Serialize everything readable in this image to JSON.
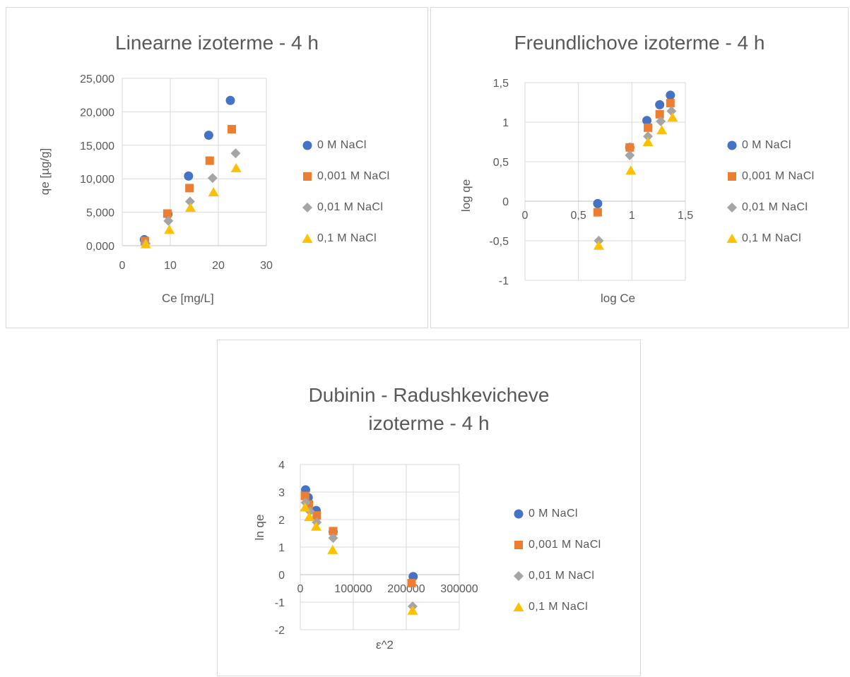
{
  "legend_series": [
    "0 M NaCl",
    "0,001 M NaCl",
    "0,01 M NaCl",
    "0,1 M NaCl"
  ],
  "colors": {
    "s0": "#4472C4",
    "s1": "#ED7D31",
    "s2": "#A5A5A5",
    "s3": "#FFC000",
    "grid": "#d9d9d9",
    "text": "#595959"
  },
  "chart_data": [
    {
      "type": "scatter",
      "title": "Linearne izoterme - 4 h",
      "xlabel": "Ce [mg/L]",
      "ylabel": "qe [µg/g]",
      "xlim": [
        0,
        30
      ],
      "ylim": [
        0,
        25
      ],
      "x_ticks": [
        "0",
        "10",
        "20",
        "30"
      ],
      "y_ticks": [
        "0,000",
        "5,000",
        "10,000",
        "15,000",
        "20,000",
        "25,000"
      ],
      "grid": true,
      "legend_position": "right",
      "series": [
        {
          "name": "0 M NaCl",
          "marker": "circle",
          "points": [
            [
              4.6,
              0.9
            ],
            [
              9.5,
              4.7
            ],
            [
              13.8,
              10.4
            ],
            [
              18.0,
              16.5
            ],
            [
              22.5,
              21.7
            ]
          ]
        },
        {
          "name": "0,001 M NaCl",
          "marker": "square",
          "points": [
            [
              4.7,
              0.7
            ],
            [
              9.4,
              4.8
            ],
            [
              14.0,
              8.6
            ],
            [
              18.2,
              12.7
            ],
            [
              22.8,
              17.4
            ]
          ]
        },
        {
          "name": "0,01 M NaCl",
          "marker": "diamond",
          "points": [
            [
              4.9,
              0.3
            ],
            [
              9.6,
              3.7
            ],
            [
              14.1,
              6.6
            ],
            [
              18.8,
              10.1
            ],
            [
              23.6,
              13.8
            ]
          ]
        },
        {
          "name": "0,1 M NaCl",
          "marker": "triangle",
          "points": [
            [
              4.9,
              0.25
            ],
            [
              9.8,
              2.4
            ],
            [
              14.2,
              5.7
            ],
            [
              19.0,
              8.0
            ],
            [
              23.7,
              11.6
            ]
          ]
        }
      ]
    },
    {
      "type": "scatter",
      "title": "Freundlichove izoterme - 4 h",
      "xlabel": "log Ce",
      "ylabel": "log qe",
      "xlim": [
        0,
        1.5
      ],
      "ylim": [
        -1,
        1.5
      ],
      "x_ticks": [
        "0",
        "0,5",
        "1",
        "1,5"
      ],
      "y_ticks": [
        "-1",
        "-0,5",
        "0",
        "0,5",
        "1",
        "1,5"
      ],
      "grid": true,
      "legend_position": "right",
      "series": [
        {
          "name": "0 M NaCl",
          "marker": "circle",
          "points": [
            [
              0.68,
              -0.03
            ],
            [
              0.98,
              0.68
            ],
            [
              1.14,
              1.02
            ],
            [
              1.26,
              1.22
            ],
            [
              1.36,
              1.34
            ]
          ]
        },
        {
          "name": "0,001 M NaCl",
          "marker": "square",
          "points": [
            [
              0.68,
              -0.14
            ],
            [
              0.98,
              0.68
            ],
            [
              1.15,
              0.93
            ],
            [
              1.26,
              1.1
            ],
            [
              1.36,
              1.24
            ]
          ]
        },
        {
          "name": "0,01 M NaCl",
          "marker": "diamond",
          "points": [
            [
              0.69,
              -0.5
            ],
            [
              0.98,
              0.58
            ],
            [
              1.15,
              0.82
            ],
            [
              1.27,
              1.01
            ],
            [
              1.37,
              1.14
            ]
          ]
        },
        {
          "name": "0,1 M NaCl",
          "marker": "triangle",
          "points": [
            [
              0.69,
              -0.56
            ],
            [
              0.99,
              0.39
            ],
            [
              1.15,
              0.75
            ],
            [
              1.28,
              0.9
            ],
            [
              1.38,
              1.06
            ]
          ]
        }
      ]
    },
    {
      "type": "scatter",
      "title": "Dubinin - Radushkevicheve izoterme - 4 h",
      "xlabel": "ε^2",
      "ylabel": "ln qe",
      "xlim": [
        0,
        300000
      ],
      "ylim": [
        -2,
        4
      ],
      "x_ticks": [
        "0",
        "100000",
        "200000",
        "300000"
      ],
      "y_ticks": [
        "-2",
        "-1",
        "0",
        "1",
        "2",
        "3",
        "4"
      ],
      "grid": true,
      "legend_position": "right",
      "series": [
        {
          "name": "0 M NaCl",
          "marker": "circle",
          "points": [
            [
              10000,
              3.08
            ],
            [
              15000,
              2.8
            ],
            [
              30000,
              2.33
            ],
            [
              62000,
              1.56
            ],
            [
              213000,
              -0.07
            ]
          ]
        },
        {
          "name": "0,001 M NaCl",
          "marker": "square",
          "points": [
            [
              9000,
              2.86
            ],
            [
              16000,
              2.55
            ],
            [
              31000,
              2.15
            ],
            [
              62000,
              1.58
            ],
            [
              210000,
              -0.31
            ]
          ]
        },
        {
          "name": "0,01 M NaCl",
          "marker": "diamond",
          "points": [
            [
              10000,
              2.62
            ],
            [
              18000,
              2.3
            ],
            [
              31000,
              1.9
            ],
            [
              62000,
              1.33
            ],
            [
              212000,
              -1.15
            ]
          ]
        },
        {
          "name": "0,1 M NaCl",
          "marker": "triangle",
          "points": [
            [
              9000,
              2.45
            ],
            [
              17000,
              2.1
            ],
            [
              30000,
              1.75
            ],
            [
              61000,
              0.9
            ],
            [
              212000,
              -1.3
            ]
          ]
        }
      ]
    }
  ]
}
